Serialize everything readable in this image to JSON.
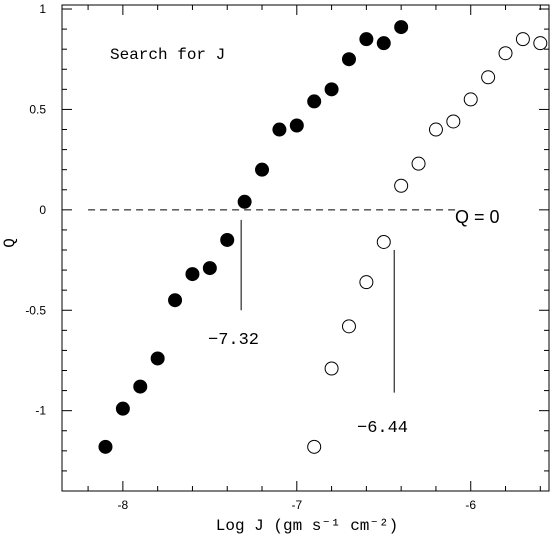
{
  "chart_data": {
    "type": "scatter",
    "title": "Search for J",
    "xlabel": "Log J (gm s⁻¹ cm⁻²)",
    "ylabel": "Q",
    "xlim": [
      -8.35,
      -5.55
    ],
    "ylim": [
      -1.4,
      1.02
    ],
    "xticks": [
      -8,
      -7,
      -6
    ],
    "xtick_labels": [
      "-8",
      "-7",
      "-6"
    ],
    "yticks": [
      1,
      0.5,
      0,
      -0.5,
      -1
    ],
    "ytick_labels": [
      "1",
      "0.5",
      "0",
      "-0.5",
      "-1"
    ],
    "grid": false,
    "series": [
      {
        "marker": "filled-circle",
        "color": "#000000",
        "x": [
          -8.1,
          -8.0,
          -7.9,
          -7.8,
          -7.7,
          -7.6,
          -7.5,
          -7.4,
          -7.3,
          -7.2,
          -7.1,
          -7.0,
          -6.9,
          -6.8,
          -6.7,
          -6.6,
          -6.5,
          -6.4
        ],
        "y": [
          -1.18,
          -0.99,
          -0.88,
          -0.74,
          -0.45,
          -0.32,
          -0.29,
          -0.15,
          0.04,
          0.2,
          0.4,
          0.42,
          0.54,
          0.6,
          0.75,
          0.85,
          0.83,
          0.91
        ]
      },
      {
        "marker": "open-circle",
        "color": "#000000",
        "x": [
          -6.9,
          -6.8,
          -6.7,
          -6.6,
          -6.5,
          -6.4,
          -6.3,
          -6.2,
          -6.1,
          -6.0,
          -5.9,
          -5.8,
          -5.7,
          -5.6
        ],
        "y": [
          -1.18,
          -0.79,
          -0.58,
          -0.36,
          -0.16,
          0.12,
          0.23,
          0.4,
          0.44,
          0.55,
          0.66,
          0.78,
          0.85,
          0.83
        ]
      }
    ],
    "reference_line": {
      "y": 0,
      "style": "dashed",
      "label": "Q = 0"
    },
    "annotations": [
      {
        "text": "−7.32",
        "x": -7.32
      },
      {
        "text": "−6.44",
        "x": -6.44
      }
    ]
  }
}
